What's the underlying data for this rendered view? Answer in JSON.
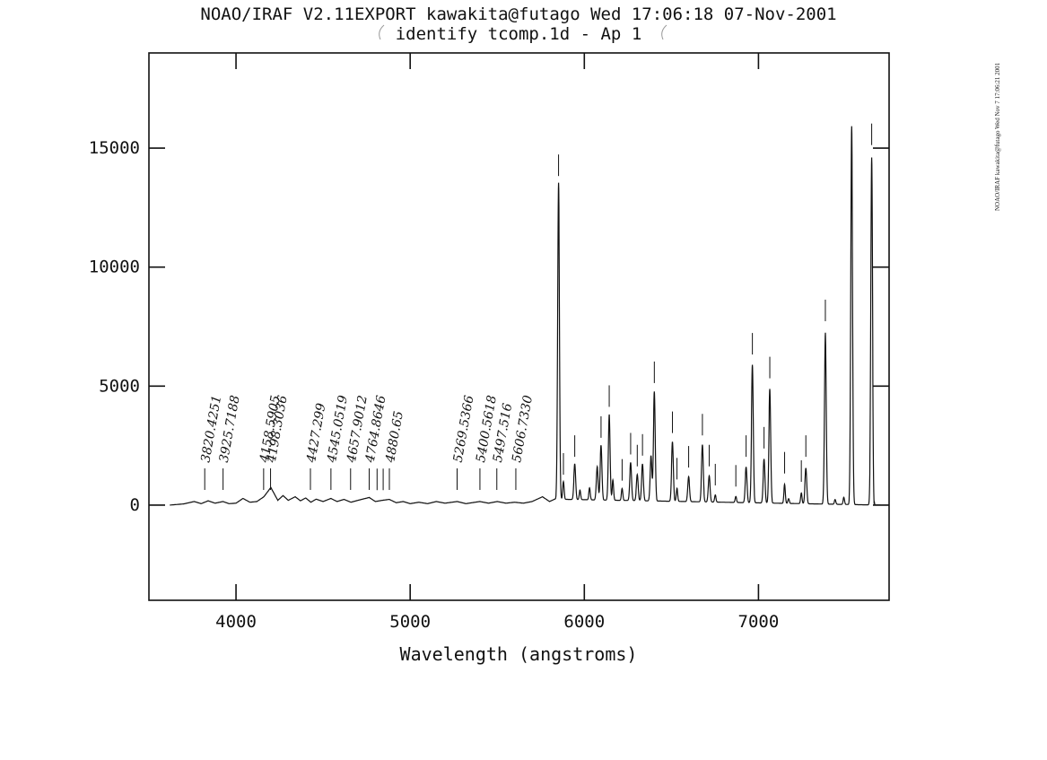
{
  "header": {
    "title": "NOAO/IRAF V2.11EXPORT kawakita@futago Wed 17:06:18 07-Nov-2001",
    "subtitle": "identify tcomp.1d - Ap 1"
  },
  "side_note": "NOAO/IRAF kawakita@futago Wed Nov 7 17:06:21 2001",
  "chart_data": {
    "type": "line",
    "title": "NOAO/IRAF V2.11EXPORT kawakita@futago Wed 17:06:18 07-Nov-2001",
    "subtitle": "identify tcomp.1d - Ap 1",
    "xlabel": "Wavelength (angstroms)",
    "ylabel": "",
    "xlim": [
      3500,
      7750
    ],
    "ylim": [
      -4000,
      19000
    ],
    "xticks": [
      4000,
      5000,
      6000,
      7000
    ],
    "yticks": [
      0,
      5000,
      10000,
      15000
    ],
    "grid": false,
    "continuum": [
      [
        3620,
        0
      ],
      [
        3700,
        50
      ],
      [
        3760,
        150
      ],
      [
        3800,
        60
      ],
      [
        3840,
        180
      ],
      [
        3880,
        80
      ],
      [
        3925,
        150
      ],
      [
        3960,
        60
      ],
      [
        4000,
        80
      ],
      [
        4040,
        280
      ],
      [
        4080,
        120
      ],
      [
        4120,
        150
      ],
      [
        4160,
        350
      ],
      [
        4200,
        740
      ],
      [
        4240,
        200
      ],
      [
        4270,
        400
      ],
      [
        4300,
        200
      ],
      [
        4340,
        350
      ],
      [
        4370,
        180
      ],
      [
        4400,
        300
      ],
      [
        4430,
        120
      ],
      [
        4460,
        250
      ],
      [
        4500,
        150
      ],
      [
        4545,
        280
      ],
      [
        4580,
        150
      ],
      [
        4620,
        240
      ],
      [
        4660,
        120
      ],
      [
        4700,
        200
      ],
      [
        4765,
        320
      ],
      [
        4800,
        150
      ],
      [
        4840,
        200
      ],
      [
        4880,
        240
      ],
      [
        4920,
        100
      ],
      [
        4960,
        150
      ],
      [
        5000,
        60
      ],
      [
        5050,
        120
      ],
      [
        5100,
        60
      ],
      [
        5150,
        150
      ],
      [
        5200,
        80
      ],
      [
        5270,
        150
      ],
      [
        5320,
        60
      ],
      [
        5400,
        150
      ],
      [
        5450,
        80
      ],
      [
        5500,
        150
      ],
      [
        5550,
        80
      ],
      [
        5600,
        120
      ],
      [
        5650,
        80
      ],
      [
        5700,
        150
      ],
      [
        5760,
        350
      ],
      [
        5800,
        150
      ],
      [
        5830,
        250
      ],
      [
        7700,
        0
      ]
    ],
    "peaks": [
      {
        "x": 5852,
        "y": 13300,
        "w": 5
      },
      {
        "x": 5880,
        "y": 750,
        "w": 4
      },
      {
        "x": 5945,
        "y": 1500,
        "w": 5
      },
      {
        "x": 5975,
        "y": 400,
        "w": 4
      },
      {
        "x": 6030,
        "y": 500,
        "w": 4
      },
      {
        "x": 6074,
        "y": 1400,
        "w": 5
      },
      {
        "x": 6096,
        "y": 2300,
        "w": 5
      },
      {
        "x": 6143,
        "y": 3600,
        "w": 5
      },
      {
        "x": 6164,
        "y": 850,
        "w": 4
      },
      {
        "x": 6217,
        "y": 500,
        "w": 4
      },
      {
        "x": 6266,
        "y": 1600,
        "w": 5
      },
      {
        "x": 6304,
        "y": 1100,
        "w": 5
      },
      {
        "x": 6334,
        "y": 1550,
        "w": 5
      },
      {
        "x": 6383,
        "y": 1900,
        "w": 5
      },
      {
        "x": 6402,
        "y": 4600,
        "w": 5
      },
      {
        "x": 6506,
        "y": 2500,
        "w": 5
      },
      {
        "x": 6532,
        "y": 550,
        "w": 4
      },
      {
        "x": 6599,
        "y": 1050,
        "w": 5
      },
      {
        "x": 6678,
        "y": 2400,
        "w": 5
      },
      {
        "x": 6717,
        "y": 1100,
        "w": 5
      },
      {
        "x": 6752,
        "y": 300,
        "w": 4
      },
      {
        "x": 6870,
        "y": 250,
        "w": 4
      },
      {
        "x": 6929,
        "y": 1500,
        "w": 5
      },
      {
        "x": 6965,
        "y": 5800,
        "w": 5
      },
      {
        "x": 7032,
        "y": 1850,
        "w": 5
      },
      {
        "x": 7065,
        "y": 4800,
        "w": 5
      },
      {
        "x": 7150,
        "y": 800,
        "w": 4
      },
      {
        "x": 7173,
        "y": 200,
        "w": 4
      },
      {
        "x": 7246,
        "y": 450,
        "w": 4
      },
      {
        "x": 7272,
        "y": 1500,
        "w": 5
      },
      {
        "x": 7384,
        "y": 7200,
        "w": 5
      },
      {
        "x": 7440,
        "y": 200,
        "w": 4
      },
      {
        "x": 7490,
        "y": 300,
        "w": 4
      },
      {
        "x": 7535,
        "y": 15900,
        "w": 5
      },
      {
        "x": 7650,
        "y": 14600,
        "w": 5
      }
    ],
    "labeled_lines": [
      {
        "label": "3820.4251",
        "x": 3820.4251
      },
      {
        "label": "3925.7188",
        "x": 3925.7188
      },
      {
        "label": "4158.5905",
        "x": 4158.5905
      },
      {
        "label": "4198.3036",
        "x": 4198.3036
      },
      {
        "label": "4427.299",
        "x": 4427.299
      },
      {
        "label": "4545.0519",
        "x": 4545.0519
      },
      {
        "label": "4657.9012",
        "x": 4657.9012
      },
      {
        "label": "4764.8646",
        "x": 4764.8646
      },
      {
        "label": "4880.65",
        "x": 4880.65
      },
      {
        "label": "5269.5366",
        "x": 5269.5366
      },
      {
        "label": "5400.5618",
        "x": 5400.5618
      },
      {
        "label": "5497.516",
        "x": 5497.516
      },
      {
        "label": "5606.7330",
        "x": 5606.733
      }
    ],
    "unlabeled_markers": [
      {
        "x": 4810,
        "y": 100
      },
      {
        "x": 4845,
        "y": 100
      },
      {
        "x": 5852,
        "y": 13300
      },
      {
        "x": 5880,
        "y": 750
      },
      {
        "x": 5945,
        "y": 1500
      },
      {
        "x": 6096,
        "y": 2300
      },
      {
        "x": 6143,
        "y": 3600
      },
      {
        "x": 6217,
        "y": 500
      },
      {
        "x": 6266,
        "y": 1600
      },
      {
        "x": 6304,
        "y": 1100
      },
      {
        "x": 6334,
        "y": 1550
      },
      {
        "x": 6402,
        "y": 4600
      },
      {
        "x": 6506,
        "y": 2500
      },
      {
        "x": 6532,
        "y": 550
      },
      {
        "x": 6599,
        "y": 1050
      },
      {
        "x": 6678,
        "y": 2400
      },
      {
        "x": 6717,
        "y": 1100
      },
      {
        "x": 6752,
        "y": 300
      },
      {
        "x": 6870,
        "y": 250
      },
      {
        "x": 6929,
        "y": 1500
      },
      {
        "x": 6965,
        "y": 5800
      },
      {
        "x": 7032,
        "y": 1850
      },
      {
        "x": 7065,
        "y": 4800
      },
      {
        "x": 7150,
        "y": 800
      },
      {
        "x": 7246,
        "y": 450
      },
      {
        "x": 7272,
        "y": 1500
      },
      {
        "x": 7384,
        "y": 7200
      },
      {
        "x": 7650,
        "y": 14600
      }
    ]
  }
}
